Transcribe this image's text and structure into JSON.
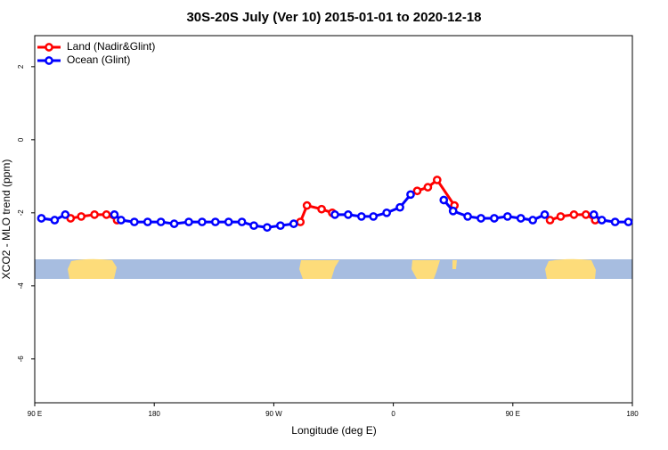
{
  "chart_data": {
    "type": "line",
    "title": "30S-20S July (Ver 10)   2015-01-01 to 2020-12-18",
    "x_label": "Longitude (deg E)",
    "y_label": "XCO2 - MLO trend (ppm)",
    "xlim": [
      90,
      540
    ],
    "ylim": [
      -7.2,
      2.85
    ],
    "xticks": [
      {
        "value": 90,
        "label": "90 E"
      },
      {
        "value": 180,
        "label": "180"
      },
      {
        "value": 270,
        "label": "90 W"
      },
      {
        "value": 360,
        "label": "0"
      },
      {
        "value": 450,
        "label": "90 E"
      },
      {
        "value": 540,
        "label": "180"
      }
    ],
    "yticks": [
      -6,
      -4,
      -2,
      0,
      2
    ],
    "legend": "top-left",
    "series": [
      {
        "name": "Land (Nadir&Glint)",
        "color": "#ff0000",
        "x": [
          117,
          125,
          135,
          144,
          152,
          null,
          290,
          295,
          306,
          314,
          null,
          378,
          386,
          393,
          406,
          null,
          478,
          486,
          496,
          505,
          512
        ],
        "values": [
          -2.15,
          -2.1,
          -2.05,
          -2.05,
          -2.2,
          null,
          -2.25,
          -1.8,
          -1.9,
          -2.0,
          null,
          -1.4,
          -1.3,
          -1.1,
          -1.8,
          null,
          -2.2,
          -2.1,
          -2.05,
          -2.05,
          -2.2
        ]
      },
      {
        "name": "Ocean (Glint)",
        "color": "#0000ff",
        "x": [
          95,
          105,
          113,
          null,
          150,
          155,
          165,
          175,
          185,
          195,
          206,
          216,
          226,
          236,
          246,
          255,
          265,
          275,
          285,
          null,
          316,
          326,
          336,
          345,
          355,
          365,
          373,
          null,
          398,
          405,
          416,
          426,
          436,
          446,
          456,
          465,
          474,
          null,
          511,
          517,
          527,
          537
        ],
        "values": [
          -2.15,
          -2.2,
          -2.05,
          null,
          -2.05,
          -2.2,
          -2.25,
          -2.25,
          -2.25,
          -2.3,
          -2.25,
          -2.25,
          -2.25,
          -2.25,
          -2.25,
          -2.35,
          -2.4,
          -2.35,
          -2.3,
          null,
          -2.05,
          -2.05,
          -2.1,
          -2.1,
          -2.0,
          -1.85,
          -1.5,
          null,
          -1.65,
          -1.95,
          -2.1,
          -2.15,
          -2.15,
          -2.1,
          -2.15,
          -2.2,
          -2.05,
          null,
          -2.05,
          -2.2,
          -2.25,
          -2.25
        ]
      }
    ]
  }
}
